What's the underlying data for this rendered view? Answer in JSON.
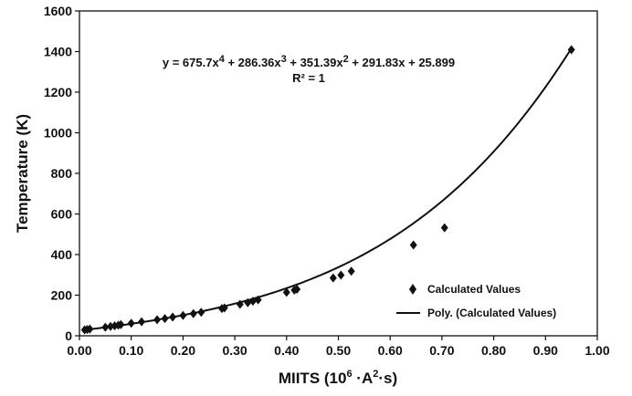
{
  "chart_data": {
    "type": "scatter",
    "xlabel_parts": {
      "pre": "MIITS (10",
      "sup1": "6",
      "mid": " ·A",
      "sup2": "2",
      "post": "·s)"
    },
    "ylabel": "Temperature (K)",
    "xlim": [
      0,
      1
    ],
    "ylim": [
      0,
      1600
    ],
    "x_ticks": [
      "0.00",
      "0.10",
      "0.20",
      "0.30",
      "0.40",
      "0.50",
      "0.60",
      "0.70",
      "0.80",
      "0.90",
      "1.00"
    ],
    "y_ticks": [
      "0",
      "200",
      "400",
      "600",
      "800",
      "1000",
      "1200",
      "1400",
      "1600"
    ],
    "grid": false,
    "series": [
      {
        "name": "Calculated Values",
        "marker": "diamond",
        "color": "#111111",
        "x": [
          0.01,
          0.015,
          0.02,
          0.05,
          0.06,
          0.068,
          0.075,
          0.08,
          0.1,
          0.12,
          0.15,
          0.165,
          0.18,
          0.2,
          0.22,
          0.235,
          0.275,
          0.28,
          0.31,
          0.325,
          0.335,
          0.345,
          0.4,
          0.415,
          0.42,
          0.49,
          0.505,
          0.525,
          0.645,
          0.705,
          0.95
        ],
        "y": [
          29,
          31,
          33,
          42,
          46,
          49,
          52,
          55,
          62,
          69,
          79,
          85,
          92,
          100,
          109,
          116,
          134,
          137,
          155,
          163,
          170,
          177,
          214,
          225,
          229,
          285,
          299,
          318,
          447,
          532,
          1409
        ]
      },
      {
        "name": "Poly. (Calculated Values)",
        "type": "line",
        "color": "#111111",
        "coefficients": [
          675.7,
          286.36,
          351.39,
          291.83,
          25.899
        ]
      }
    ],
    "annotation": {
      "equation_parts": [
        "y = 675.7x",
        "4",
        " + 286.36x",
        "3",
        " + 351.39x",
        "2",
        " + 291.83x + 25.899"
      ],
      "r2": "R² = 1"
    },
    "legend_position": "bottom-right"
  }
}
